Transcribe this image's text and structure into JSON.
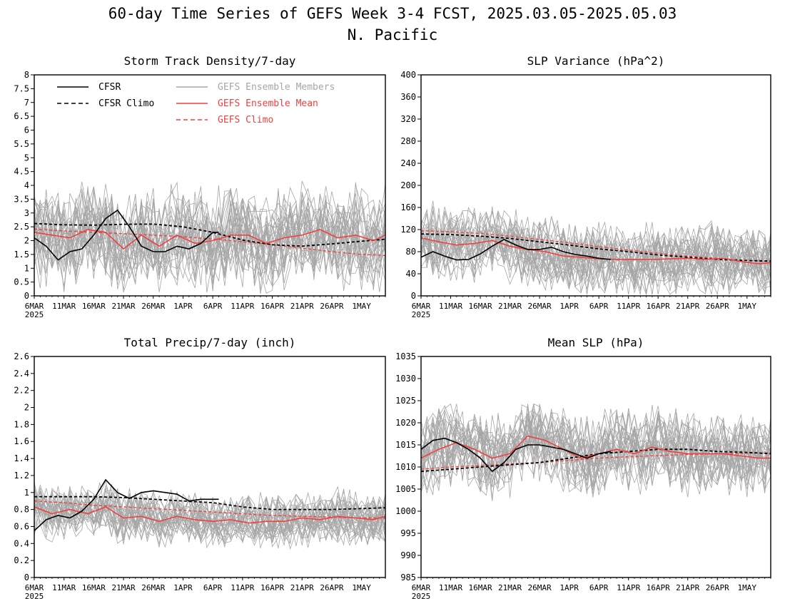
{
  "figure": {
    "title_line1": "60-day Time Series of GEFS Week 3-4 FCST, 2025.03.05-2025.05.03",
    "title_line2": "N. Pacific"
  },
  "colors": {
    "cfsr": "#000000",
    "members": "#a6a6a6",
    "ens_mean": "#f04040",
    "gefs_climo": "#f04040"
  },
  "legend": {
    "cfsr": "CFSR",
    "cfsr_climo": "CFSR Climo",
    "members": "GEFS Ensemble Members",
    "ens_mean": "GEFS Ensemble Mean",
    "gefs_climo": "GEFS Climo"
  },
  "x_ticks": [
    "6MAR",
    "11MAR",
    "16MAR",
    "21MAR",
    "26MAR",
    "1APR",
    "6APR",
    "11APR",
    "16APR",
    "21APR",
    "26APR",
    "1MAY"
  ],
  "x_year_label": "2025",
  "chart_data": [
    {
      "type": "line",
      "title": "Storm Track Density/7-day",
      "ylim": [
        0,
        8
      ],
      "yticks": [
        "0",
        "0.5",
        "1",
        "1.5",
        "2",
        "2.5",
        "3",
        "3.5",
        "4",
        "4.5",
        "5",
        "5.5",
        "6",
        "6.5",
        "7",
        "7.5",
        "8"
      ],
      "member_spread": [
        1.2,
        4.9
      ],
      "series": [
        {
          "name": "CFSR",
          "x": [
            0,
            2,
            4,
            6,
            8,
            10,
            12,
            14,
            16,
            18,
            20,
            22,
            24,
            26,
            28,
            30,
            31
          ],
          "values": [
            2.1,
            1.8,
            1.3,
            1.6,
            1.7,
            2.2,
            2.8,
            3.1,
            2.5,
            1.8,
            1.6,
            1.6,
            1.8,
            1.7,
            1.9,
            2.3,
            2.3
          ]
        },
        {
          "name": "CFSR Climo",
          "x": [
            0,
            5,
            10,
            15,
            20,
            25,
            30,
            35,
            40,
            45,
            50,
            55,
            59
          ],
          "values": [
            2.62,
            2.57,
            2.56,
            2.59,
            2.6,
            2.5,
            2.3,
            2.02,
            1.85,
            1.8,
            1.88,
            1.98,
            2.05
          ]
        },
        {
          "name": "GEFS Ensemble Mean",
          "x": [
            0,
            3,
            6,
            9,
            12,
            15,
            18,
            21,
            24,
            27,
            30,
            33,
            36,
            39,
            42,
            45,
            48,
            51,
            54,
            57,
            59
          ],
          "values": [
            2.3,
            2.2,
            2.1,
            2.4,
            2.3,
            1.7,
            2.2,
            1.8,
            2.2,
            1.9,
            2.0,
            2.2,
            2.2,
            1.9,
            2.1,
            2.2,
            2.4,
            2.1,
            2.2,
            2.0,
            2.2
          ]
        },
        {
          "name": "GEFS Climo",
          "x": [
            0,
            5,
            10,
            15,
            20,
            25,
            30,
            35,
            40,
            45,
            50,
            55,
            59
          ],
          "values": [
            2.42,
            2.35,
            2.3,
            2.25,
            2.2,
            2.14,
            2.06,
            1.96,
            1.85,
            1.73,
            1.6,
            1.5,
            1.46
          ]
        }
      ]
    },
    {
      "type": "line",
      "title": "SLP Variance (hPa^2)",
      "ylim": [
        0,
        400
      ],
      "yticks": [
        "0",
        "40",
        "80",
        "120",
        "160",
        "200",
        "240",
        "280",
        "320",
        "360",
        "400"
      ],
      "member_spread": [
        35,
        170
      ],
      "series": [
        {
          "name": "CFSR",
          "x": [
            0,
            2,
            4,
            6,
            8,
            10,
            12,
            14,
            16,
            18,
            20,
            22,
            24,
            26,
            28,
            30,
            32
          ],
          "values": [
            70,
            80,
            72,
            65,
            66,
            76,
            90,
            102,
            92,
            84,
            84,
            88,
            80,
            75,
            72,
            68,
            66
          ]
        },
        {
          "name": "CFSR Climo",
          "x": [
            0,
            5,
            10,
            15,
            20,
            25,
            30,
            35,
            40,
            45,
            50,
            55,
            59
          ],
          "values": [
            112,
            111,
            108,
            104,
            98,
            92,
            85,
            80,
            74,
            70,
            66,
            64,
            63
          ]
        },
        {
          "name": "GEFS Ensemble Mean",
          "x": [
            0,
            3,
            6,
            9,
            12,
            15,
            18,
            21,
            24,
            27,
            30,
            33,
            36,
            39,
            42,
            45,
            48,
            51,
            54,
            57,
            59
          ],
          "values": [
            105,
            98,
            92,
            95,
            100,
            90,
            84,
            80,
            72,
            70,
            67,
            66,
            66,
            66,
            67,
            68,
            66,
            68,
            62,
            58,
            60
          ]
        },
        {
          "name": "GEFS Climo",
          "x": [
            0,
            5,
            10,
            15,
            20,
            25,
            30,
            35,
            40,
            45,
            50,
            55,
            59
          ],
          "values": [
            118,
            116,
            113,
            108,
            102,
            96,
            89,
            83,
            77,
            72,
            68,
            64,
            62
          ]
        }
      ]
    },
    {
      "type": "line",
      "title": "Total Precip/7-day (inch)",
      "ylim": [
        0,
        2.6
      ],
      "yticks": [
        "0",
        "0.2",
        "0.4",
        "0.6",
        "0.8",
        "1",
        "1.2",
        "1.4",
        "1.6",
        "1.8",
        "2",
        "2.2",
        "2.4",
        "2.6"
      ],
      "member_spread": [
        0.45,
        1.1
      ],
      "series": [
        {
          "name": "CFSR",
          "x": [
            0,
            2,
            4,
            6,
            8,
            10,
            12,
            14,
            16,
            18,
            20,
            22,
            24,
            26,
            28,
            30,
            31
          ],
          "values": [
            0.55,
            0.68,
            0.73,
            0.7,
            0.78,
            0.92,
            1.15,
            1.0,
            0.93,
            1.0,
            1.02,
            1.0,
            0.98,
            0.9,
            0.92,
            0.92,
            0.92
          ]
        },
        {
          "name": "CFSR Climo",
          "x": [
            0,
            5,
            10,
            15,
            20,
            25,
            30,
            35,
            40,
            45,
            50,
            55,
            59
          ],
          "values": [
            0.95,
            0.95,
            0.95,
            0.94,
            0.92,
            0.9,
            0.88,
            0.83,
            0.8,
            0.8,
            0.8,
            0.81,
            0.82
          ]
        },
        {
          "name": "GEFS Ensemble Mean",
          "x": [
            0,
            3,
            6,
            9,
            12,
            15,
            18,
            21,
            24,
            27,
            30,
            33,
            36,
            39,
            42,
            45,
            48,
            51,
            54,
            57,
            59
          ],
          "values": [
            0.83,
            0.75,
            0.8,
            0.75,
            0.83,
            0.7,
            0.72,
            0.66,
            0.72,
            0.68,
            0.66,
            0.68,
            0.64,
            0.66,
            0.66,
            0.7,
            0.68,
            0.72,
            0.7,
            0.68,
            0.72
          ]
        },
        {
          "name": "GEFS Climo",
          "x": [
            0,
            5,
            10,
            15,
            20,
            25,
            30,
            35,
            40,
            45,
            50,
            55,
            59
          ],
          "values": [
            0.9,
            0.88,
            0.85,
            0.83,
            0.81,
            0.79,
            0.77,
            0.75,
            0.73,
            0.72,
            0.71,
            0.7,
            0.7
          ]
        }
      ]
    },
    {
      "type": "line",
      "title": "Mean SLP (hPa)",
      "ylim": [
        985,
        1035
      ],
      "yticks": [
        "985",
        "990",
        "995",
        "1000",
        "1005",
        "1010",
        "1015",
        "1020",
        "1025",
        "1030",
        "1035"
      ],
      "member_spread": [
        1003,
        1022
      ],
      "series": [
        {
          "name": "CFSR",
          "x": [
            0,
            2,
            4,
            6,
            8,
            10,
            12,
            14,
            16,
            18,
            20,
            22,
            24,
            26,
            28,
            30,
            32
          ],
          "values": [
            1014,
            1016,
            1016.5,
            1015.5,
            1014,
            1012,
            1009,
            1011,
            1014,
            1015,
            1015,
            1014.5,
            1014,
            1013,
            1012,
            1013,
            1013.5
          ]
        },
        {
          "name": "CFSR Climo",
          "x": [
            0,
            5,
            10,
            15,
            20,
            25,
            30,
            35,
            40,
            45,
            50,
            55,
            59
          ],
          "values": [
            1009,
            1009.5,
            1010,
            1010.5,
            1011,
            1012,
            1013,
            1013.5,
            1014,
            1014,
            1013.5,
            1013.3,
            1013
          ]
        },
        {
          "name": "GEFS Ensemble Mean",
          "x": [
            0,
            3,
            6,
            9,
            12,
            15,
            18,
            21,
            24,
            27,
            30,
            33,
            36,
            39,
            42,
            45,
            48,
            51,
            54,
            57,
            59
          ],
          "values": [
            1012,
            1014,
            1015.5,
            1014,
            1012,
            1013,
            1017,
            1016,
            1014,
            1012,
            1013,
            1014,
            1013,
            1014.5,
            1013.5,
            1013,
            1013,
            1013,
            1012.5,
            1012,
            1012
          ]
        },
        {
          "name": "GEFS Climo",
          "x": [
            0,
            5,
            10,
            15,
            20,
            25,
            30,
            35,
            40,
            45,
            50,
            55,
            59
          ],
          "values": [
            1009.5,
            1010,
            1010.3,
            1010.7,
            1011,
            1011.5,
            1012,
            1012.3,
            1012.6,
            1012.8,
            1013,
            1013.1,
            1013.2
          ]
        }
      ]
    }
  ]
}
